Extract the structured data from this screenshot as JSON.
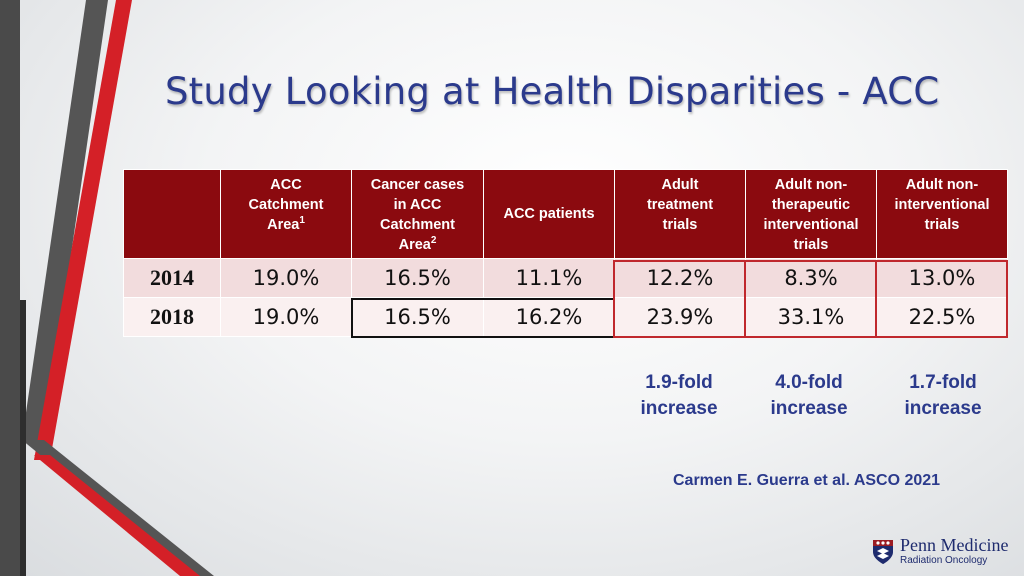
{
  "title": "Study Looking at Health Disparities - ACC",
  "table": {
    "headers": [
      {
        "lines": [
          ""
        ]
      },
      {
        "lines": [
          "ACC",
          "Catchment",
          "Area"
        ],
        "sup": "1"
      },
      {
        "lines": [
          "Cancer cases",
          "in ACC",
          "Catchment",
          "Area"
        ],
        "sup": "2"
      },
      {
        "lines": [
          "ACC patients"
        ]
      },
      {
        "lines": [
          "Adult",
          "treatment",
          "trials"
        ]
      },
      {
        "lines": [
          "Adult non-",
          "therapeutic",
          "interventional",
          "trials"
        ]
      },
      {
        "lines": [
          "Adult non-",
          "interventional",
          "trials"
        ]
      }
    ],
    "rows": [
      {
        "year": "2014",
        "values": [
          "19.0%",
          "16.5%",
          "11.1%",
          "12.2%",
          "8.3%",
          "13.0%"
        ]
      },
      {
        "year": "2018",
        "values": [
          "19.0%",
          "16.5%",
          "16.2%",
          "23.9%",
          "33.1%",
          "22.5%"
        ]
      }
    ]
  },
  "folds": [
    {
      "text": "1.9-fold\nincrease"
    },
    {
      "text": "4.0-fold\nincrease"
    },
    {
      "text": "1.7-fold\nincrease"
    }
  ],
  "citation": "Carmen E. Guerra et al. ASCO 2021",
  "logo": {
    "brand": "Penn Medicine",
    "sub": "Radiation Oncology"
  },
  "colors": {
    "header_bg": "#8b0a0f",
    "title": "#2b3a8c",
    "accent_red": "#d42027",
    "highlight_box": "#c0282d"
  }
}
